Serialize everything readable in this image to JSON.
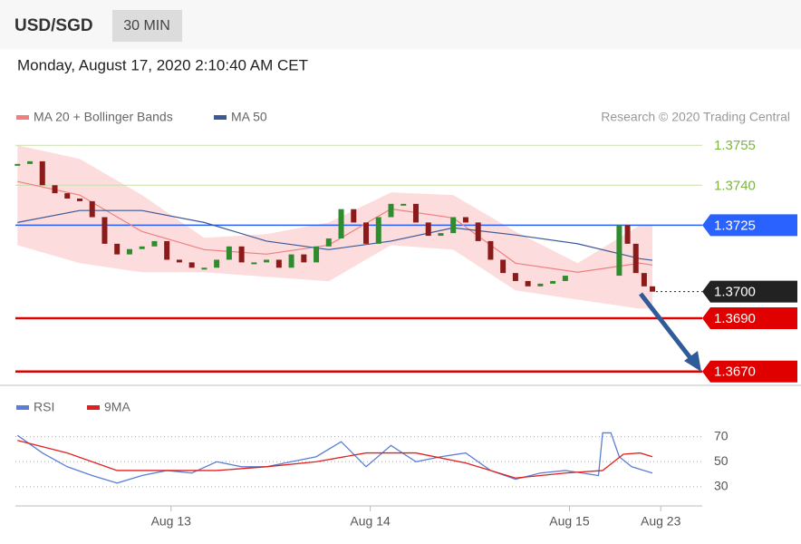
{
  "header": {
    "symbol": "USD/SGD",
    "interval": "30 MIN",
    "datetime": "Monday, August 17, 2020 2:10:40 AM CET"
  },
  "chart_data": [
    {
      "type": "candlestick",
      "source": "Research © 2020 Trading Central",
      "up_color": "#2e8b2e",
      "down_color": "#8b1a1a",
      "xlim": [
        -0.5,
        165
      ],
      "ylim": [
        1.36665,
        1.37585
      ],
      "x": [
        0,
        3,
        6,
        9,
        12,
        15,
        18,
        21,
        24,
        27,
        30,
        33,
        36,
        39,
        42,
        45,
        48,
        51,
        54,
        57,
        60,
        63,
        66,
        69,
        72,
        75,
        78,
        81,
        84,
        87,
        90,
        93,
        96,
        99,
        102,
        105,
        108,
        111,
        114,
        117,
        120,
        123,
        126,
        129,
        132,
        145,
        147,
        149,
        151,
        153
      ],
      "close": [
        1.3748,
        1.3749,
        1.374,
        1.3737,
        1.3735,
        1.3734,
        1.3728,
        1.3718,
        1.3714,
        1.3716,
        1.3717,
        1.3719,
        1.3712,
        1.3711,
        1.3709,
        1.3709,
        1.3712,
        1.3717,
        1.3711,
        1.3711,
        1.3712,
        1.3709,
        1.3714,
        1.3711,
        1.3717,
        1.372,
        1.3731,
        1.3726,
        1.3718,
        1.3728,
        1.3733,
        1.3733,
        1.3726,
        1.3721,
        1.3722,
        1.3728,
        1.3726,
        1.3719,
        1.3712,
        1.3707,
        1.3704,
        1.3702,
        1.3703,
        1.3704,
        1.3706,
        1.3725,
        1.3718,
        1.3707,
        1.3702,
        1.37
      ],
      "series": [
        {
          "name": "MA 20 + Bollinger Bands",
          "color": "#f08080",
          "band_color": "#fbd3d3",
          "x": [
            0,
            15,
            30,
            45,
            60,
            75,
            90,
            105,
            120,
            135,
            150,
            153
          ],
          "values": [
            1.37414,
            1.37363,
            1.37226,
            1.37158,
            1.37141,
            1.37175,
            1.37311,
            1.37277,
            1.37107,
            1.37073,
            1.37107,
            1.371
          ],
          "upper": [
            1.3755,
            1.37499,
            1.37363,
            1.37202,
            1.37216,
            1.3726,
            1.37373,
            1.37363,
            1.37226,
            1.37107,
            1.3725,
            1.3725
          ],
          "lower": [
            1.37175,
            1.37107,
            1.37073,
            1.37073,
            1.37056,
            1.37039,
            1.37175,
            1.37158,
            1.37005,
            1.3697,
            1.36936,
            1.36936
          ]
        },
        {
          "name": "MA 50",
          "color": "#3b5998",
          "x": [
            0,
            15,
            30,
            45,
            60,
            75,
            90,
            105,
            120,
            135,
            150,
            153
          ],
          "values": [
            1.3726,
            1.37305,
            1.37305,
            1.3726,
            1.3719,
            1.37158,
            1.3719,
            1.3724,
            1.37213,
            1.3718,
            1.37124,
            1.37118
          ]
        }
      ],
      "levels": [
        {
          "value": 1.3755,
          "label": "1.3755",
          "color": "#7cb342",
          "line_color": "#c5e1a5",
          "tag": false,
          "dash": false,
          "width": 1
        },
        {
          "value": 1.374,
          "label": "1.3740",
          "color": "#7cb342",
          "line_color": "#c5e1a5",
          "tag": false,
          "dash": false,
          "width": 1
        },
        {
          "value": 1.3725,
          "label": "1.3725",
          "color": "#2962ff",
          "line_color": "#2962ff",
          "tag": true,
          "dash": false,
          "width": 1.5
        },
        {
          "value": 1.37,
          "label": "1.3700",
          "color": "#222222",
          "line_color": "#222222",
          "tag": true,
          "dash": true,
          "width": 1
        },
        {
          "value": 1.369,
          "label": "1.3690",
          "color": "#e00000",
          "line_color": "#e00000",
          "tag": true,
          "dash": false,
          "width": 2.5
        },
        {
          "value": 1.367,
          "label": "1.3670",
          "color": "#e00000",
          "line_color": "#e00000",
          "tag": true,
          "dash": false,
          "width": 2.5
        }
      ]
    },
    {
      "type": "line",
      "xlim": [
        -0.5,
        165
      ],
      "ylim": [
        22,
        82
      ],
      "yticks": [
        30,
        50,
        70
      ],
      "grid": true,
      "xticks": [
        {
          "value": 37,
          "label": "Aug 13"
        },
        {
          "value": 85,
          "label": "Aug 14"
        },
        {
          "value": 133,
          "label": "Aug 15"
        },
        {
          "value": 155,
          "label": "Aug 23"
        }
      ],
      "series": [
        {
          "name": "RSI",
          "color": "#5b7fd6",
          "x": [
            0,
            6,
            12,
            18,
            24,
            30,
            36,
            42,
            48,
            54,
            60,
            66,
            72,
            78,
            84,
            90,
            96,
            102,
            108,
            114,
            120,
            126,
            132,
            140,
            141,
            143,
            145,
            148,
            153
          ],
          "values": [
            71,
            57,
            46,
            39,
            33,
            39,
            43,
            41,
            50,
            46,
            46,
            50,
            54,
            66,
            46,
            63,
            50,
            54,
            57,
            43,
            36,
            41,
            43,
            39,
            73,
            73,
            54,
            46,
            41
          ]
        },
        {
          "name": "9MA",
          "color": "#e02020",
          "x": [
            0,
            12,
            24,
            36,
            48,
            60,
            72,
            84,
            96,
            108,
            120,
            132,
            141,
            146,
            150,
            153
          ],
          "values": [
            67,
            57,
            43,
            43,
            43,
            46,
            50,
            57,
            57,
            49,
            37,
            41,
            43,
            56,
            57,
            54
          ]
        }
      ]
    }
  ]
}
